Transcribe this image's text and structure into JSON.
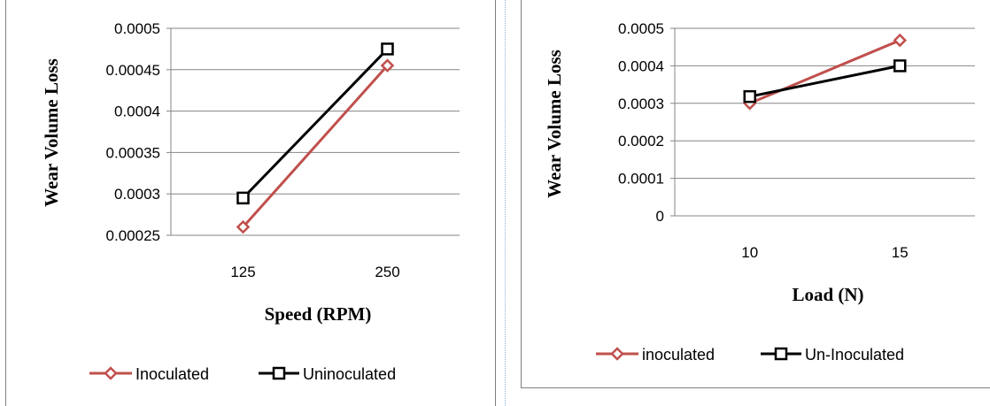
{
  "chart_data": [
    {
      "type": "line",
      "categories": [
        "125",
        "250"
      ],
      "series": [
        {
          "name": "Inoculated",
          "values": [
            0.00026,
            0.000455
          ],
          "color": "#c0504d",
          "marker": "diamond"
        },
        {
          "name": "Uninoculated",
          "values": [
            0.000295,
            0.000475
          ],
          "color": "#000000",
          "marker": "square"
        }
      ],
      "xlabel": "Speed (RPM)",
      "ylabel": "Wear Volume Loss",
      "ylim": [
        0.00025,
        0.0005
      ],
      "yticks": [
        "0.0005",
        "0.00045",
        "0.0004",
        "0.00035",
        "0.0003",
        "0.00025"
      ],
      "grid": true,
      "legend": "bottom"
    },
    {
      "type": "line",
      "categories": [
        "10",
        "15"
      ],
      "series": [
        {
          "name": "inoculated",
          "values": [
            0.0003,
            0.000468
          ],
          "color": "#c0504d",
          "marker": "diamond"
        },
        {
          "name": "Un-Inoculated",
          "values": [
            0.000318,
            0.0004
          ],
          "color": "#000000",
          "marker": "square"
        }
      ],
      "xlabel": "Load (N)",
      "ylabel": "Wear Volume Loss",
      "ylim": [
        0,
        0.0005
      ],
      "yticks": [
        "0.0005",
        "0.0004",
        "0.0003",
        "0.0002",
        "0.0001",
        "0"
      ],
      "grid": true,
      "legend": "bottom"
    }
  ]
}
